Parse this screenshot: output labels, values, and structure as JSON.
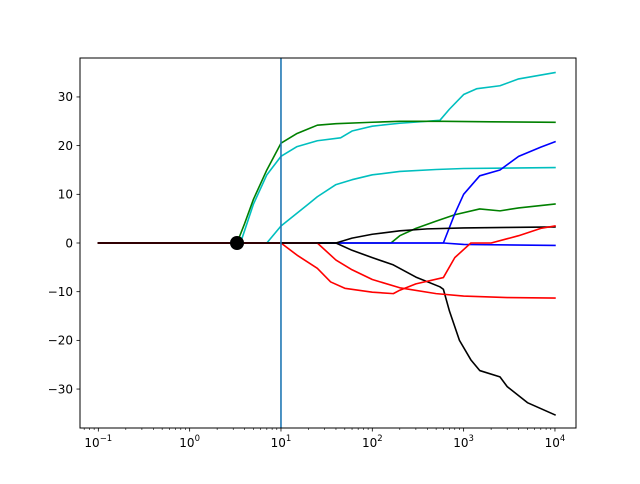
{
  "chart_data": {
    "type": "line",
    "title": "",
    "xlabel": "",
    "ylabel": "",
    "xscale": "log",
    "xlim": [
      0.063,
      17000
    ],
    "ylim": [
      -38,
      38
    ],
    "grid": false,
    "x_ticks": [
      {
        "value": 0.1,
        "base": "10",
        "exp": "−1"
      },
      {
        "value": 1,
        "base": "10",
        "exp": "0"
      },
      {
        "value": 10,
        "base": "10",
        "exp": "1"
      },
      {
        "value": 100,
        "base": "10",
        "exp": "2"
      },
      {
        "value": 1000,
        "base": "10",
        "exp": "3"
      },
      {
        "value": 10000,
        "base": "10",
        "exp": "4"
      }
    ],
    "y_ticks": [
      {
        "value": 30,
        "label": "30"
      },
      {
        "value": 20,
        "label": "20"
      },
      {
        "value": 10,
        "label": "10"
      },
      {
        "value": 0,
        "label": "0"
      },
      {
        "value": -10,
        "label": "−10"
      },
      {
        "value": -20,
        "label": "−20"
      },
      {
        "value": -30,
        "label": "−30"
      }
    ],
    "vline": {
      "x": 10,
      "color": "#1f77b4"
    },
    "marker": {
      "x": 3.3,
      "y": 0,
      "color": "#000000"
    },
    "series": [
      {
        "color": "#00bfbf",
        "points": [
          [
            0.1,
            0
          ],
          [
            7,
            0
          ],
          [
            10,
            3.5
          ],
          [
            20,
            8
          ],
          [
            25,
            9.5
          ],
          [
            40,
            12
          ],
          [
            60,
            13
          ],
          [
            100,
            14
          ],
          [
            200,
            14.7
          ],
          [
            500,
            15.1
          ],
          [
            1000,
            15.3
          ],
          [
            10000,
            15.5
          ]
        ]
      },
      {
        "color": "#00bfbf",
        "points": [
          [
            0.1,
            0
          ],
          [
            3.6,
            0
          ],
          [
            5,
            8
          ],
          [
            7,
            14
          ],
          [
            10,
            17.8
          ],
          [
            15,
            19.8
          ],
          [
            25,
            21
          ],
          [
            45,
            21.6
          ],
          [
            60,
            23
          ],
          [
            100,
            24
          ],
          [
            200,
            24.6
          ],
          [
            550,
            25.2
          ],
          [
            700,
            27.5
          ],
          [
            1000,
            30.5
          ],
          [
            1400,
            31.7
          ],
          [
            2500,
            32.3
          ],
          [
            4000,
            33.7
          ],
          [
            10000,
            35
          ]
        ]
      },
      {
        "color": "#008000",
        "points": [
          [
            0.1,
            0
          ],
          [
            3.3,
            0
          ],
          [
            4,
            4
          ],
          [
            5,
            9
          ],
          [
            7,
            15
          ],
          [
            10,
            20.5
          ],
          [
            15,
            22.5
          ],
          [
            25,
            24.2
          ],
          [
            40,
            24.5
          ],
          [
            100,
            24.8
          ],
          [
            200,
            25
          ],
          [
            600,
            25
          ],
          [
            2000,
            24.9
          ],
          [
            10000,
            24.8
          ]
        ]
      },
      {
        "color": "#008000",
        "points": [
          [
            0.1,
            0
          ],
          [
            160,
            0
          ],
          [
            200,
            1.5
          ],
          [
            300,
            3
          ],
          [
            500,
            4.5
          ],
          [
            800,
            5.8
          ],
          [
            1500,
            7
          ],
          [
            2500,
            6.6
          ],
          [
            4000,
            7.2
          ],
          [
            10000,
            8
          ]
        ]
      },
      {
        "color": "#0000ff",
        "points": [
          [
            0.1,
            0
          ],
          [
            600,
            0
          ],
          [
            800,
            6
          ],
          [
            1000,
            10
          ],
          [
            1500,
            13.8
          ],
          [
            2500,
            15
          ],
          [
            4000,
            17.8
          ],
          [
            7000,
            19.7
          ],
          [
            10000,
            20.8
          ]
        ]
      },
      {
        "color": "#0000ff",
        "points": [
          [
            0.1,
            0
          ],
          [
            600,
            0
          ],
          [
            1000,
            -0.3
          ],
          [
            10000,
            -0.5
          ]
        ]
      },
      {
        "color": "#000000",
        "points": [
          [
            0.1,
            0
          ],
          [
            40,
            0
          ],
          [
            60,
            1
          ],
          [
            100,
            1.8
          ],
          [
            200,
            2.5
          ],
          [
            400,
            2.9
          ],
          [
            1000,
            3.1
          ],
          [
            3000,
            3.2
          ],
          [
            10000,
            3.3
          ]
        ]
      },
      {
        "color": "#000000",
        "points": [
          [
            0.1,
            0
          ],
          [
            40,
            0
          ],
          [
            60,
            -1.5
          ],
          [
            100,
            -3
          ],
          [
            170,
            -4.5
          ],
          [
            300,
            -7
          ],
          [
            550,
            -9
          ],
          [
            600,
            -9.5
          ],
          [
            700,
            -14
          ],
          [
            900,
            -20
          ],
          [
            1200,
            -24
          ],
          [
            1500,
            -26.2
          ],
          [
            2500,
            -27.5
          ],
          [
            3000,
            -29.5
          ],
          [
            5000,
            -32.8
          ],
          [
            10000,
            -35.3
          ]
        ]
      },
      {
        "color": "#ff0000",
        "points": [
          [
            0.1,
            0
          ],
          [
            10,
            0
          ],
          [
            15,
            -2.5
          ],
          [
            25,
            -5.2
          ],
          [
            35,
            -8
          ],
          [
            50,
            -9.3
          ],
          [
            100,
            -10.1
          ],
          [
            170,
            -10.4
          ],
          [
            200,
            -9.7
          ],
          [
            300,
            -8.4
          ],
          [
            600,
            -7.1
          ],
          [
            800,
            -3
          ],
          [
            1200,
            0
          ],
          [
            2000,
            0
          ],
          [
            4000,
            1.5
          ],
          [
            7000,
            3
          ],
          [
            10000,
            3.5
          ]
        ]
      },
      {
        "color": "#ff0000",
        "points": [
          [
            0.1,
            0
          ],
          [
            25,
            0
          ],
          [
            40,
            -3.5
          ],
          [
            60,
            -5.5
          ],
          [
            100,
            -7.5
          ],
          [
            200,
            -9.2
          ],
          [
            500,
            -10.4
          ],
          [
            1000,
            -10.9
          ],
          [
            3000,
            -11.2
          ],
          [
            10000,
            -11.3
          ]
        ]
      },
      {
        "color": "#000000",
        "points": [
          [
            0.1,
            0
          ],
          [
            40,
            0
          ]
        ]
      }
    ]
  }
}
